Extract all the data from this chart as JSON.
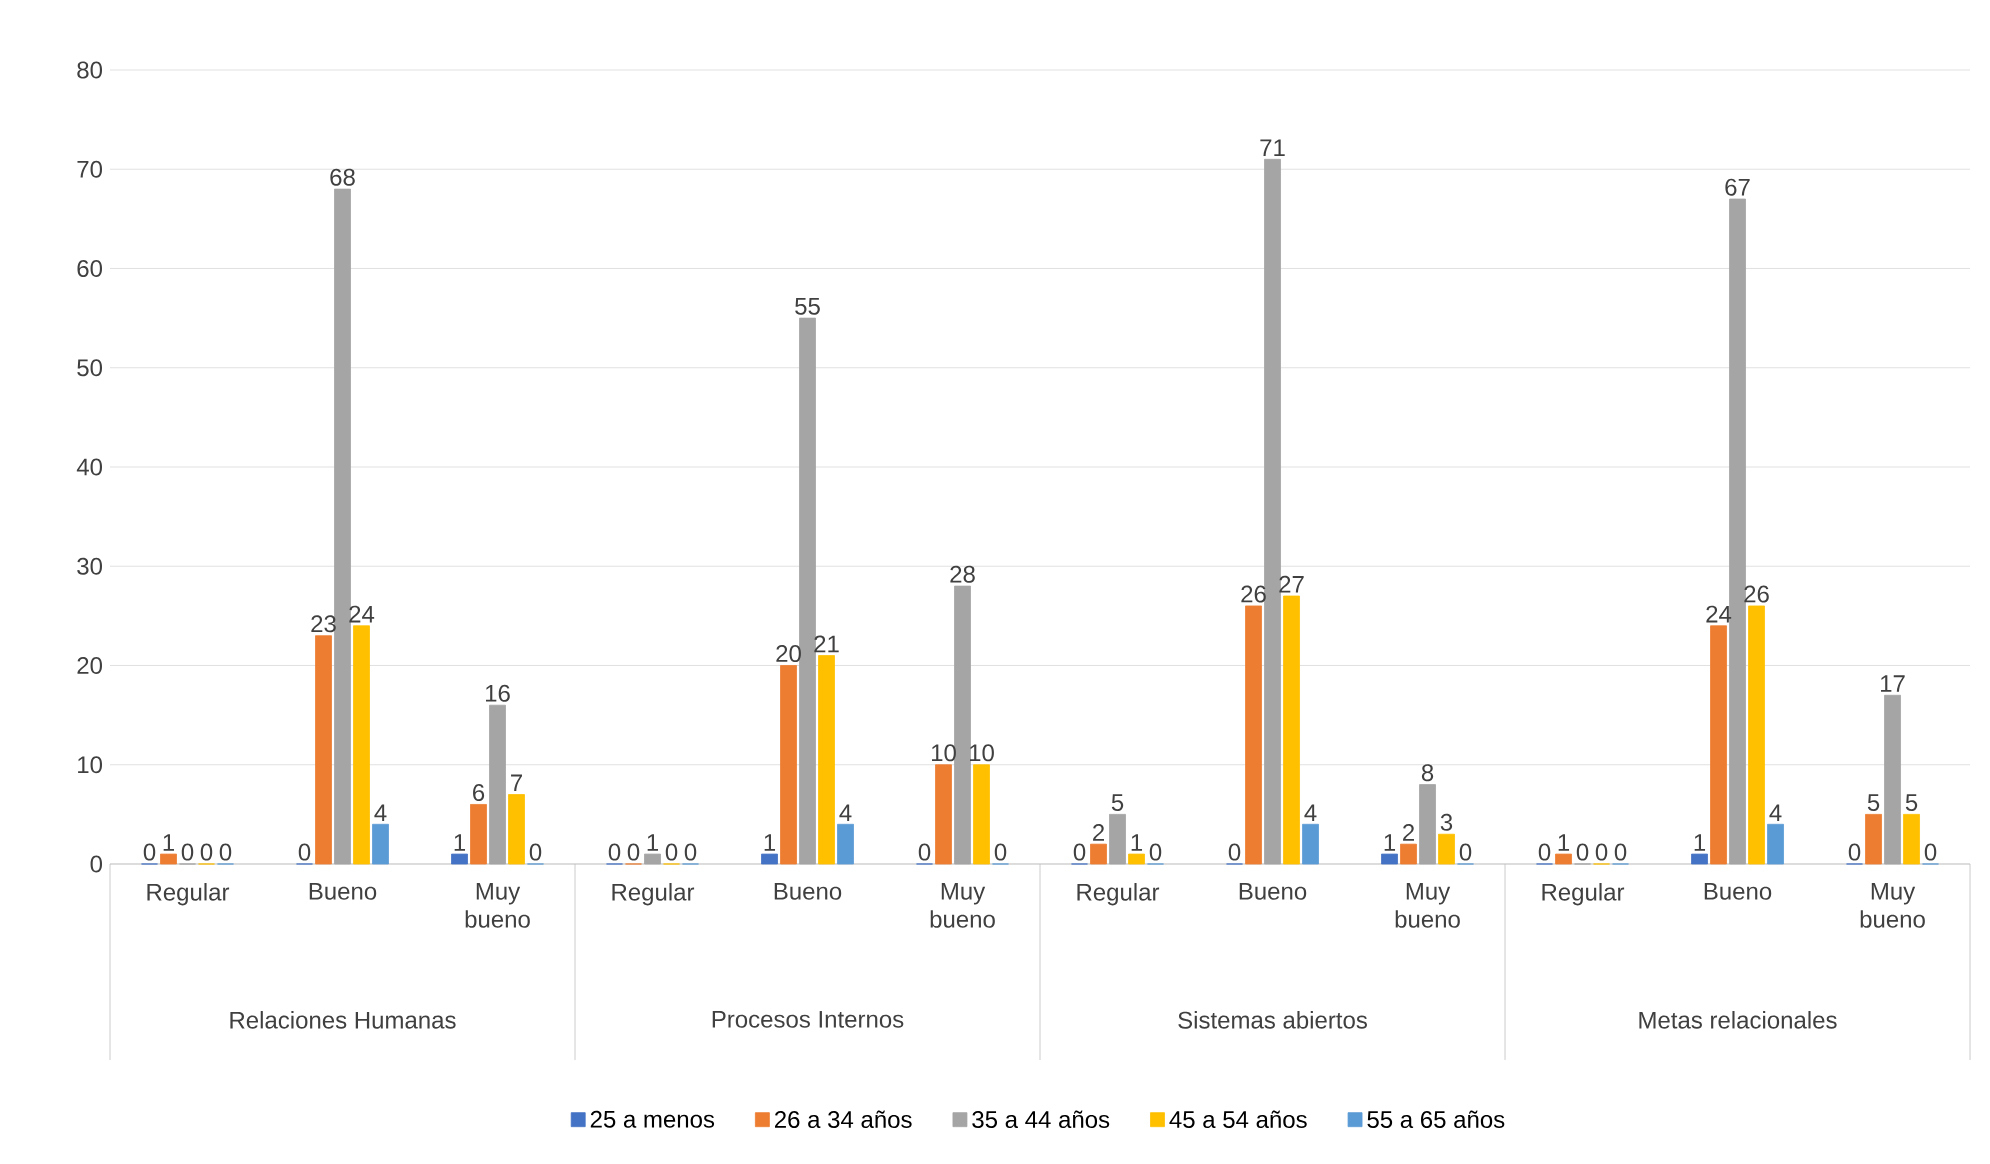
{
  "chart_data": {
    "type": "bar",
    "categories": [
      "Regular",
      "Bueno",
      "Muy bueno",
      "Regular",
      "Bueno",
      "Muy bueno",
      "Regular",
      "Bueno",
      "Muy bueno",
      "Regular",
      "Bueno",
      "Muy bueno"
    ],
    "annotations": [
      "Relaciones Humanas",
      "Procesos Internos",
      "Sistemas abiertos",
      "Metas relacionales"
    ],
    "series": [
      {
        "name": "25 a menos",
        "color": "#4472c4",
        "values": [
          0,
          0,
          1,
          0,
          1,
          0,
          0,
          0,
          1,
          0,
          1,
          0
        ]
      },
      {
        "name": "26 a 34 años",
        "color": "#ed7d31",
        "values": [
          1,
          23,
          6,
          0,
          20,
          10,
          2,
          26,
          2,
          1,
          24,
          5
        ]
      },
      {
        "name": "35 a 44 años",
        "color": "#a5a5a5",
        "values": [
          0,
          68,
          16,
          1,
          55,
          28,
          5,
          71,
          8,
          0,
          67,
          17
        ]
      },
      {
        "name": "45 a 54 años",
        "color": "#ffc000",
        "values": [
          0,
          24,
          7,
          0,
          21,
          10,
          1,
          27,
          3,
          0,
          26,
          5
        ]
      },
      {
        "name": "55 a 65 años",
        "color": "#5b9bd5",
        "values": [
          0,
          4,
          0,
          0,
          4,
          0,
          0,
          4,
          0,
          0,
          4,
          0
        ]
      }
    ],
    "ylim": [
      0,
      80
    ],
    "yticks": [
      0,
      10,
      20,
      30,
      40,
      50,
      60,
      70,
      80
    ],
    "grid": "y",
    "legend": "bottom",
    "data_labels": true
  }
}
